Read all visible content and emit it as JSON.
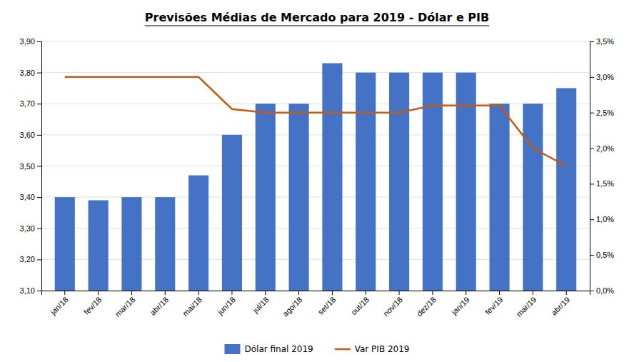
{
  "chart_data": {
    "type": "bar",
    "title": "Previsões Médias de Mercado para 2019 - Dólar e PIB",
    "categories": [
      "jan/18",
      "fev/18",
      "mar/18",
      "abr/18",
      "mai/18",
      "jun/18",
      "jul/18",
      "ago/18",
      "set/18",
      "out/18",
      "nov/18",
      "dez/18",
      "jan/19",
      "fev/19",
      "mar/19",
      "abr/19"
    ],
    "series": [
      {
        "name": "Dólar final 2019",
        "type": "bar",
        "color": "#4472C4",
        "values": [
          3.4,
          3.39,
          3.4,
          3.4,
          3.47,
          3.6,
          3.7,
          3.7,
          3.83,
          3.8,
          3.8,
          3.8,
          3.8,
          3.7,
          3.7,
          3.75
        ]
      },
      {
        "name": "Var PIB 2019",
        "type": "line",
        "color": "#C55A11",
        "axis": "y2",
        "values": [
          0.03,
          0.03,
          0.03,
          0.03,
          0.03,
          0.0255,
          0.025,
          0.025,
          0.025,
          0.025,
          0.025,
          0.026,
          0.026,
          0.026,
          0.02,
          0.0175
        ]
      }
    ],
    "ylim": [
      3.1,
      3.9
    ],
    "yticks": [
      {
        "value": 3.1,
        "label": "3,10"
      },
      {
        "value": 3.2,
        "label": "3,20"
      },
      {
        "value": 3.3,
        "label": "3,30"
      },
      {
        "value": 3.4,
        "label": "3,40"
      },
      {
        "value": 3.5,
        "label": "3,50"
      },
      {
        "value": 3.6,
        "label": "3,60"
      },
      {
        "value": 3.7,
        "label": "3,70"
      },
      {
        "value": 3.8,
        "label": "3,80"
      },
      {
        "value": 3.9,
        "label": "3,90"
      }
    ],
    "y2lim": [
      0.0,
      0.035
    ],
    "y2ticks": [
      {
        "value": 0.0,
        "label": "0,0%"
      },
      {
        "value": 0.005,
        "label": "0,5%"
      },
      {
        "value": 0.01,
        "label": "1,0%"
      },
      {
        "value": 0.015,
        "label": "1,5%"
      },
      {
        "value": 0.02,
        "label": "2,0%"
      },
      {
        "value": 0.025,
        "label": "2,5%"
      },
      {
        "value": 0.03,
        "label": "3,0%"
      },
      {
        "value": 0.035,
        "label": "3,5%"
      }
    ],
    "grid": true,
    "legend": "bottom"
  }
}
